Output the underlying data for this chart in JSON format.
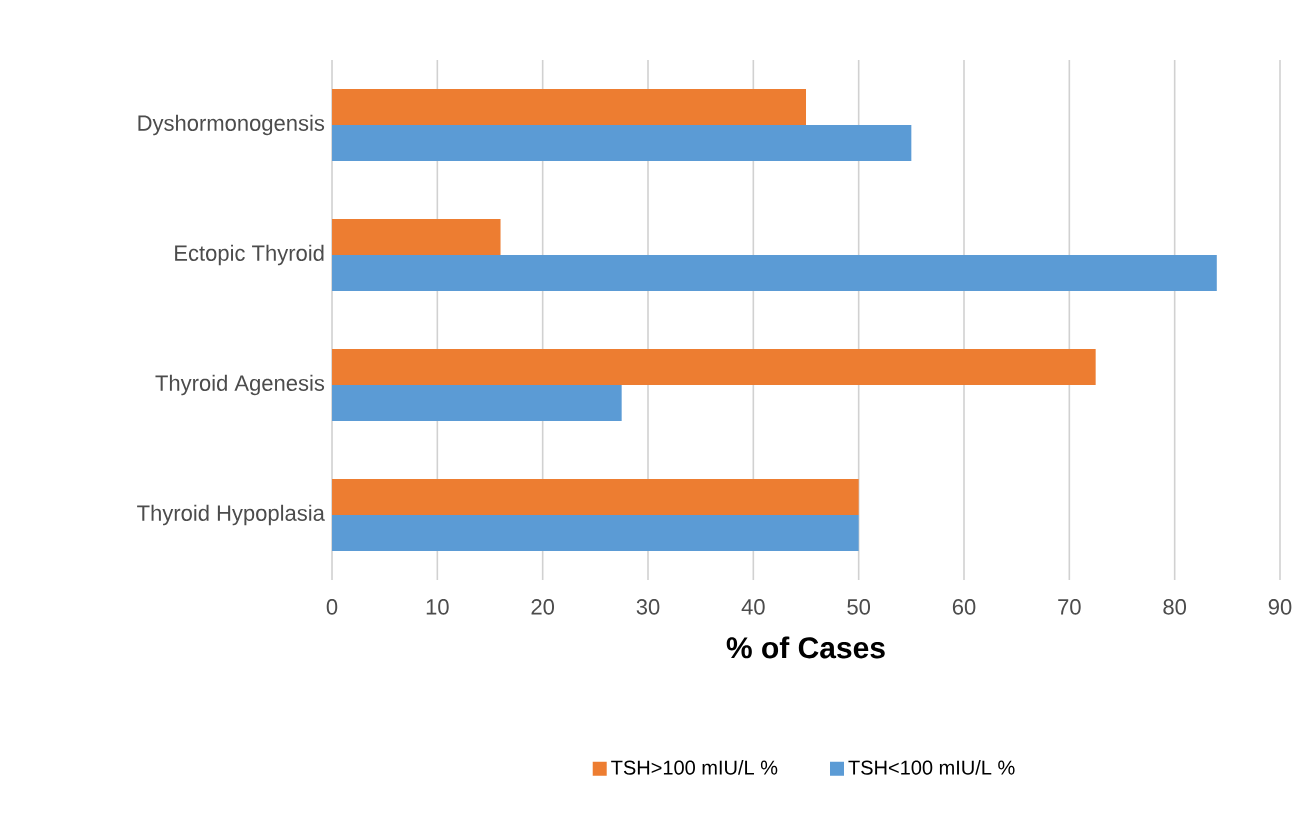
{
  "chart_data": {
    "type": "bar",
    "orientation": "horizontal",
    "xlabel": "% of Cases",
    "categories": [
      "Dyshormonogensis",
      "Ectopic Thyroid",
      "Thyroid Agenesis",
      "Thyroid Hypoplasia"
    ],
    "series": [
      {
        "name": "TSH>100 mIU/L %",
        "color": "#ed7d31",
        "values": [
          45,
          16,
          72.5,
          50
        ]
      },
      {
        "name": "TSH<100 mIU/L %",
        "color": "#5b9bd5",
        "values": [
          55,
          84,
          27.5,
          50
        ]
      }
    ],
    "xlim": [
      0,
      90
    ],
    "xticks": [
      0,
      10,
      20,
      30,
      40,
      50,
      60,
      70,
      80,
      90
    ],
    "grid": "x",
    "legend": "bottom"
  }
}
